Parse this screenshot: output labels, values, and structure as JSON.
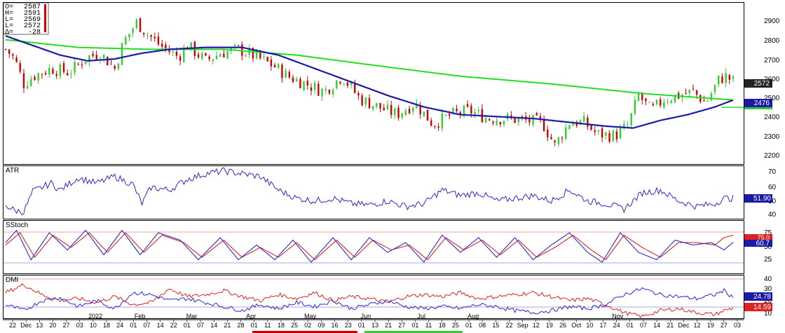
{
  "ohlc": {
    "labels": [
      "O=",
      "H=",
      "L=",
      "L=",
      "Δ="
    ],
    "values": [
      "2587",
      "2591",
      "2569",
      "2572",
      "-28"
    ]
  },
  "price_axis": {
    "ticks": [
      "2900",
      "2800",
      "2700",
      "2600",
      "2500",
      "2400",
      "2300",
      "2200"
    ]
  },
  "atr_axis": {
    "ticks": [
      "70",
      "60",
      "50",
      "40"
    ]
  },
  "stoch_axis": {
    "ticks": [
      "75",
      "50",
      "25"
    ]
  },
  "dmi_axis": {
    "ticks": [
      "40",
      "30",
      "20",
      "10"
    ]
  },
  "value_tags": {
    "last_price": "2572",
    "ma_value": "2476",
    "atr_value": "51.90",
    "stoch_red": "75.0",
    "stoch_blue": "60.7",
    "dmi_blue": "24.78",
    "dmi_red": "14.59"
  },
  "panel_titles": {
    "atr": "ATR",
    "stoch": "SStoch",
    "dmi": "DMI"
  },
  "date_axis": {
    "labels": [
      "22",
      "Dec",
      "13",
      "20",
      "27",
      "03",
      "10",
      "18",
      "24",
      "01",
      "07",
      "14",
      "22",
      "01",
      "07",
      "14",
      "21",
      "28",
      "01",
      "11",
      "18",
      "25",
      "02",
      "09",
      "16",
      "23",
      "01",
      "13",
      "21",
      "27",
      "01",
      "11",
      "18",
      "25",
      "01",
      "08",
      "15",
      "22",
      "Sep",
      "12",
      "19",
      "26",
      "Oct",
      "10",
      "17",
      "24",
      "01",
      "07",
      "14",
      "21",
      "Dec",
      "12",
      "19",
      "27",
      "03"
    ],
    "months": [
      "2022",
      "Feb",
      "Mar",
      "Apr",
      "May",
      "Jun",
      "Jul",
      "Aug",
      "Nov"
    ]
  },
  "colors": {
    "candle_up": "#33cc33",
    "candle_down": "#cc0000",
    "ma_fast": "#1a1aa6",
    "ma_slow": "#22dd22",
    "atr_line": "#2a2acc",
    "stoch_k": "#2a2acc",
    "stoch_d": "#dd2222",
    "dmi_plus": "#2a2acc",
    "dmi_minus": "#dd2222",
    "tag_black": "#222222",
    "tag_blue": "#1a1aa6",
    "tag_red": "#dd2222",
    "tag_green": "#33cc33"
  },
  "chart_data": [
    {
      "type": "candlestick",
      "title": "",
      "ylim": [
        2150,
        2975
      ],
      "ticks": [
        2200,
        2300,
        2400,
        2500,
        2600,
        2700,
        2800,
        2900
      ],
      "anchors_close": [
        [
          0,
          2740
        ],
        [
          5,
          2690
        ],
        [
          10,
          2560
        ],
        [
          15,
          2600
        ],
        [
          25,
          2640
        ],
        [
          35,
          2620
        ],
        [
          45,
          2700
        ],
        [
          52,
          2720
        ],
        [
          60,
          2640
        ],
        [
          65,
          2780
        ],
        [
          72,
          2880
        ],
        [
          78,
          2820
        ],
        [
          85,
          2760
        ],
        [
          95,
          2700
        ],
        [
          100,
          2760
        ],
        [
          110,
          2680
        ],
        [
          118,
          2720
        ],
        [
          128,
          2740
        ],
        [
          138,
          2700
        ],
        [
          148,
          2650
        ],
        [
          155,
          2600
        ],
        [
          165,
          2560
        ],
        [
          175,
          2520
        ],
        [
          185,
          2600
        ],
        [
          195,
          2480
        ],
        [
          205,
          2440
        ],
        [
          215,
          2400
        ],
        [
          225,
          2460
        ],
        [
          235,
          2350
        ],
        [
          245,
          2400
        ],
        [
          255,
          2420
        ],
        [
          265,
          2380
        ],
        [
          275,
          2380
        ],
        [
          285,
          2370
        ],
        [
          295,
          2360
        ],
        [
          302,
          2240
        ],
        [
          310,
          2360
        ],
        [
          318,
          2360
        ],
        [
          325,
          2300
        ],
        [
          335,
          2290
        ],
        [
          342,
          2340
        ],
        [
          348,
          2500
        ],
        [
          355,
          2420
        ],
        [
          362,
          2480
        ],
        [
          370,
          2500
        ],
        [
          378,
          2520
        ],
        [
          385,
          2460
        ],
        [
          392,
          2580
        ],
        [
          396,
          2600
        ],
        [
          400,
          2572
        ]
      ],
      "ma_fast_anchors": [
        [
          0,
          2810
        ],
        [
          15,
          2760
        ],
        [
          30,
          2710
        ],
        [
          45,
          2680
        ],
        [
          60,
          2690
        ],
        [
          75,
          2720
        ],
        [
          90,
          2740
        ],
        [
          110,
          2750
        ],
        [
          130,
          2750
        ],
        [
          150,
          2710
        ],
        [
          170,
          2640
        ],
        [
          190,
          2570
        ],
        [
          210,
          2500
        ],
        [
          230,
          2440
        ],
        [
          250,
          2400
        ],
        [
          270,
          2390
        ],
        [
          290,
          2380
        ],
        [
          310,
          2360
        ],
        [
          330,
          2340
        ],
        [
          345,
          2330
        ],
        [
          360,
          2370
        ],
        [
          375,
          2400
        ],
        [
          390,
          2440
        ],
        [
          400,
          2476
        ]
      ],
      "ma_slow_anchors": [
        [
          0,
          2790
        ],
        [
          40,
          2750
        ],
        [
          80,
          2740
        ],
        [
          120,
          2740
        ],
        [
          160,
          2710
        ],
        [
          200,
          2660
        ],
        [
          250,
          2600
        ],
        [
          300,
          2560
        ],
        [
          350,
          2510
        ],
        [
          380,
          2490
        ],
        [
          400,
          2476
        ]
      ]
    },
    {
      "type": "line",
      "title": "ATR",
      "ylim": [
        38,
        74
      ],
      "anchors": [
        [
          0,
          47
        ],
        [
          5,
          43
        ],
        [
          10,
          42
        ],
        [
          15,
          57
        ],
        [
          20,
          60
        ],
        [
          25,
          63
        ],
        [
          30,
          58
        ],
        [
          40,
          67
        ],
        [
          50,
          63
        ],
        [
          60,
          68
        ],
        [
          70,
          62
        ],
        [
          75,
          48
        ],
        [
          80,
          60
        ],
        [
          90,
          58
        ],
        [
          100,
          66
        ],
        [
          110,
          70
        ],
        [
          120,
          72
        ],
        [
          130,
          70
        ],
        [
          140,
          68
        ],
        [
          150,
          58
        ],
        [
          160,
          52
        ],
        [
          170,
          50
        ],
        [
          180,
          52
        ],
        [
          190,
          48
        ],
        [
          200,
          47
        ],
        [
          210,
          50
        ],
        [
          220,
          46
        ],
        [
          230,
          48
        ],
        [
          240,
          58
        ],
        [
          250,
          54
        ],
        [
          260,
          56
        ],
        [
          270,
          50
        ],
        [
          280,
          52
        ],
        [
          290,
          54
        ],
        [
          300,
          50
        ],
        [
          310,
          58
        ],
        [
          320,
          50
        ],
        [
          330,
          48
        ],
        [
          340,
          44
        ],
        [
          350,
          56
        ],
        [
          360,
          58
        ],
        [
          370,
          50
        ],
        [
          380,
          46
        ],
        [
          390,
          48
        ],
        [
          395,
          52
        ],
        [
          400,
          51.9
        ]
      ]
    },
    {
      "type": "line",
      "title": "SStoch",
      "ylim": [
        0,
        100
      ],
      "k_anchors": [
        [
          0,
          60
        ],
        [
          6,
          85
        ],
        [
          14,
          25
        ],
        [
          24,
          80
        ],
        [
          34,
          45
        ],
        [
          44,
          85
        ],
        [
          54,
          35
        ],
        [
          64,
          85
        ],
        [
          74,
          35
        ],
        [
          84,
          80
        ],
        [
          96,
          65
        ],
        [
          106,
          25
        ],
        [
          118,
          70
        ],
        [
          128,
          25
        ],
        [
          138,
          55
        ],
        [
          148,
          25
        ],
        [
          158,
          65
        ],
        [
          168,
          20
        ],
        [
          180,
          70
        ],
        [
          190,
          25
        ],
        [
          200,
          70
        ],
        [
          210,
          40
        ],
        [
          220,
          60
        ],
        [
          230,
          20
        ],
        [
          240,
          75
        ],
        [
          250,
          40
        ],
        [
          260,
          70
        ],
        [
          270,
          30
        ],
        [
          280,
          70
        ],
        [
          290,
          25
        ],
        [
          300,
          55
        ],
        [
          310,
          80
        ],
        [
          320,
          40
        ],
        [
          328,
          20
        ],
        [
          338,
          80
        ],
        [
          348,
          40
        ],
        [
          358,
          25
        ],
        [
          368,
          65
        ],
        [
          378,
          55
        ],
        [
          388,
          60
        ],
        [
          395,
          45
        ],
        [
          400,
          60.7
        ]
      ],
      "d_anchors": [
        [
          0,
          55
        ],
        [
          8,
          80
        ],
        [
          16,
          30
        ],
        [
          26,
          75
        ],
        [
          36,
          50
        ],
        [
          46,
          80
        ],
        [
          56,
          40
        ],
        [
          66,
          80
        ],
        [
          76,
          40
        ],
        [
          86,
          75
        ],
        [
          98,
          60
        ],
        [
          108,
          30
        ],
        [
          120,
          65
        ],
        [
          130,
          30
        ],
        [
          140,
          50
        ],
        [
          150,
          30
        ],
        [
          160,
          60
        ],
        [
          170,
          25
        ],
        [
          182,
          65
        ],
        [
          192,
          30
        ],
        [
          202,
          65
        ],
        [
          212,
          45
        ],
        [
          222,
          55
        ],
        [
          232,
          25
        ],
        [
          242,
          70
        ],
        [
          252,
          45
        ],
        [
          262,
          65
        ],
        [
          272,
          35
        ],
        [
          282,
          65
        ],
        [
          292,
          30
        ],
        [
          302,
          50
        ],
        [
          312,
          75
        ],
        [
          322,
          45
        ],
        [
          330,
          25
        ],
        [
          340,
          75
        ],
        [
          350,
          50
        ],
        [
          360,
          30
        ],
        [
          370,
          60
        ],
        [
          380,
          60
        ],
        [
          390,
          55
        ],
        [
          395,
          70
        ],
        [
          400,
          75
        ]
      ]
    },
    {
      "type": "line",
      "title": "DMI",
      "ylim": [
        5,
        45
      ],
      "plus_anchors": [
        [
          0,
          18
        ],
        [
          10,
          12
        ],
        [
          20,
          22
        ],
        [
          30,
          25
        ],
        [
          40,
          16
        ],
        [
          50,
          22
        ],
        [
          60,
          14
        ],
        [
          70,
          30
        ],
        [
          80,
          28
        ],
        [
          90,
          22
        ],
        [
          100,
          24
        ],
        [
          110,
          20
        ],
        [
          120,
          16
        ],
        [
          130,
          12
        ],
        [
          140,
          18
        ],
        [
          150,
          14
        ],
        [
          160,
          20
        ],
        [
          170,
          16
        ],
        [
          180,
          22
        ],
        [
          190,
          14
        ],
        [
          200,
          18
        ],
        [
          210,
          22
        ],
        [
          220,
          16
        ],
        [
          230,
          14
        ],
        [
          240,
          16
        ],
        [
          250,
          14
        ],
        [
          260,
          18
        ],
        [
          270,
          16
        ],
        [
          280,
          12
        ],
        [
          290,
          10
        ],
        [
          300,
          12
        ],
        [
          310,
          16
        ],
        [
          320,
          14
        ],
        [
          330,
          18
        ],
        [
          340,
          28
        ],
        [
          350,
          34
        ],
        [
          360,
          28
        ],
        [
          370,
          26
        ],
        [
          380,
          24
        ],
        [
          390,
          28
        ],
        [
          395,
          32
        ],
        [
          400,
          24.78
        ]
      ],
      "minus_anchors": [
        [
          0,
          30
        ],
        [
          10,
          38
        ],
        [
          20,
          28
        ],
        [
          30,
          22
        ],
        [
          40,
          24
        ],
        [
          50,
          20
        ],
        [
          60,
          26
        ],
        [
          70,
          18
        ],
        [
          80,
          20
        ],
        [
          90,
          34
        ],
        [
          100,
          26
        ],
        [
          110,
          28
        ],
        [
          120,
          32
        ],
        [
          130,
          26
        ],
        [
          140,
          22
        ],
        [
          150,
          28
        ],
        [
          160,
          24
        ],
        [
          170,
          30
        ],
        [
          180,
          22
        ],
        [
          190,
          26
        ],
        [
          200,
          24
        ],
        [
          210,
          20
        ],
        [
          220,
          26
        ],
        [
          230,
          28
        ],
        [
          240,
          26
        ],
        [
          250,
          30
        ],
        [
          260,
          24
        ],
        [
          270,
          26
        ],
        [
          280,
          28
        ],
        [
          290,
          30
        ],
        [
          300,
          26
        ],
        [
          310,
          22
        ],
        [
          320,
          24
        ],
        [
          330,
          18
        ],
        [
          340,
          10
        ],
        [
          350,
          6
        ],
        [
          360,
          12
        ],
        [
          370,
          14
        ],
        [
          380,
          10
        ],
        [
          390,
          8
        ],
        [
          395,
          12
        ],
        [
          400,
          14.59
        ]
      ]
    }
  ]
}
